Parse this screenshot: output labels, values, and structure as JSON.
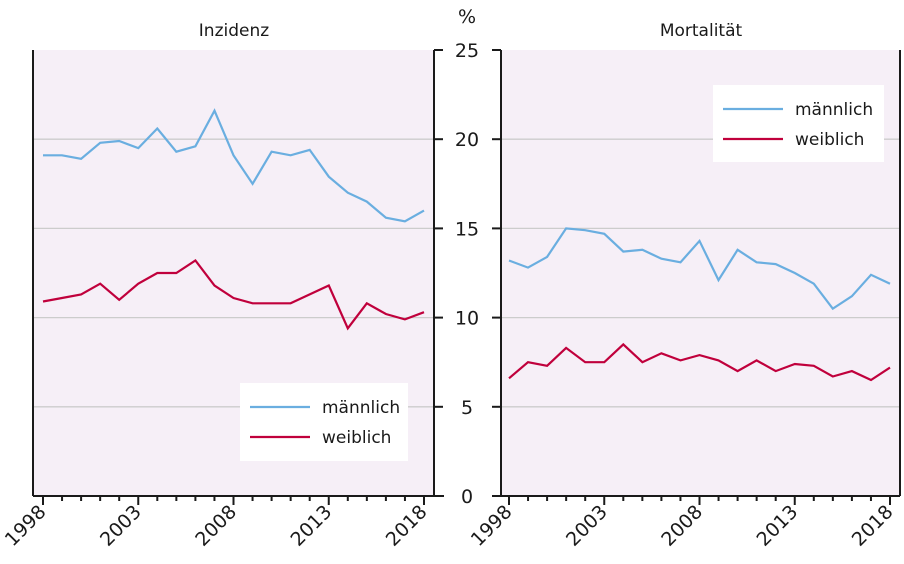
{
  "unit_label": "%",
  "colors": {
    "male": "#6aaee0",
    "female": "#c0003c",
    "plot_bg": "#f6eff7",
    "grid": "#cccccc",
    "axis": "#1a1a1a"
  },
  "chart_data": [
    {
      "type": "line",
      "title": "Inzidenz",
      "xlabel": "",
      "ylabel": "%",
      "x": [
        1998,
        1999,
        2000,
        2001,
        2002,
        2003,
        2004,
        2005,
        2006,
        2007,
        2008,
        2009,
        2010,
        2011,
        2012,
        2013,
        2014,
        2015,
        2016,
        2017,
        2018
      ],
      "x_tick_labels": [
        "1998",
        "2003",
        "2008",
        "2013",
        "2018"
      ],
      "y_tick_labels": [
        "0",
        "5",
        "10",
        "15",
        "20",
        "25"
      ],
      "ylim": [
        0,
        25
      ],
      "grid": true,
      "legend_position": "bottom-right",
      "series": [
        {
          "name": "männlich",
          "color_key": "male",
          "values": [
            19.1,
            19.1,
            18.9,
            19.8,
            19.9,
            19.5,
            20.6,
            19.3,
            19.6,
            21.6,
            19.1,
            17.5,
            19.3,
            19.1,
            19.4,
            17.9,
            17.0,
            16.5,
            15.6,
            15.4,
            16.0
          ]
        },
        {
          "name": "weiblich",
          "color_key": "female",
          "values": [
            10.9,
            11.1,
            11.3,
            11.9,
            11.0,
            11.9,
            12.5,
            12.5,
            13.2,
            11.8,
            11.1,
            10.8,
            10.8,
            10.8,
            11.3,
            11.8,
            9.4,
            10.8,
            10.2,
            9.9,
            10.3
          ]
        }
      ]
    },
    {
      "type": "line",
      "title": "Mortalität",
      "xlabel": "",
      "ylabel": "%",
      "x": [
        1998,
        1999,
        2000,
        2001,
        2002,
        2003,
        2004,
        2005,
        2006,
        2007,
        2008,
        2009,
        2010,
        2011,
        2012,
        2013,
        2014,
        2015,
        2016,
        2017,
        2018
      ],
      "x_tick_labels": [
        "1998",
        "2003",
        "2008",
        "2013",
        "2018"
      ],
      "y_tick_labels": [
        "0",
        "5",
        "10",
        "15",
        "20",
        "25"
      ],
      "ylim": [
        0,
        25
      ],
      "grid": true,
      "legend_position": "top-right",
      "series": [
        {
          "name": "männlich",
          "color_key": "male",
          "values": [
            13.2,
            12.8,
            13.4,
            15.0,
            14.9,
            14.7,
            13.7,
            13.8,
            13.3,
            13.1,
            14.3,
            12.1,
            13.8,
            13.1,
            13.0,
            12.5,
            11.9,
            10.5,
            11.2,
            12.4,
            11.9
          ]
        },
        {
          "name": "weiblich",
          "color_key": "female",
          "values": [
            6.6,
            7.5,
            7.3,
            8.3,
            7.5,
            7.5,
            8.5,
            7.5,
            8.0,
            7.6,
            7.9,
            7.6,
            7.0,
            7.6,
            7.0,
            7.4,
            7.3,
            6.7,
            7.0,
            6.5,
            7.2
          ]
        }
      ]
    }
  ]
}
